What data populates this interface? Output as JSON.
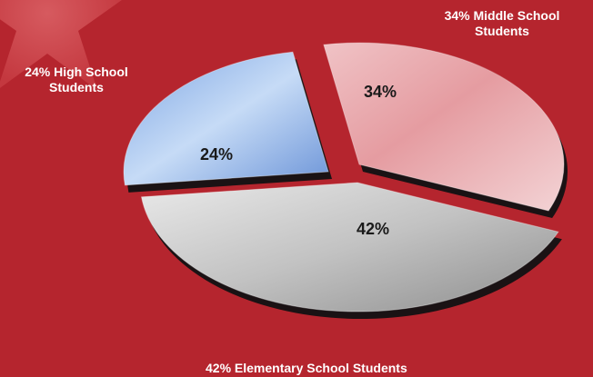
{
  "chart_data": {
    "type": "pie",
    "title": "",
    "slices": [
      {
        "name": "Middle School Students",
        "value": 34,
        "pct_label": "34%",
        "outer_label": "34% Middle School Students",
        "color": "#e6a0a4"
      },
      {
        "name": "Elementary School Students",
        "value": 42,
        "pct_label": "42%",
        "outer_label": "42% Elementary School Students",
        "color": "#c9c9c9"
      },
      {
        "name": "High School Students",
        "value": 24,
        "pct_label": "24%",
        "outer_label": "24% High School Students",
        "color": "#a8c4ec"
      }
    ],
    "legend": "none"
  },
  "colors": {
    "background": "#b5252e",
    "label_text": "#ffffff",
    "pct_text": "#1a1a1a",
    "slice_shadow": "#1a1214"
  }
}
